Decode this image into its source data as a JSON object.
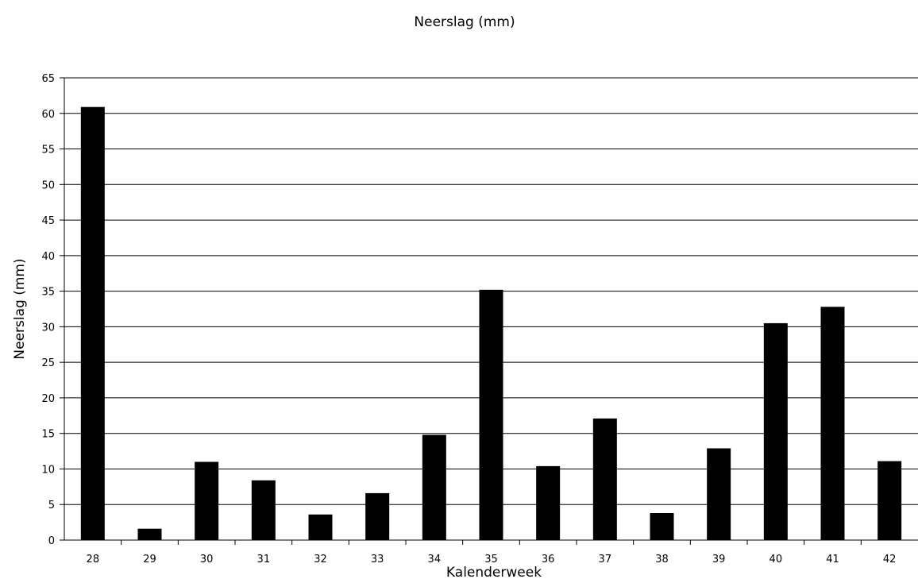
{
  "chart_data": {
    "type": "bar",
    "title": "Neerslag (mm)",
    "xlabel": "Kalenderweek",
    "ylabel": "Neerslag (mm)",
    "categories": [
      "28",
      "29",
      "30",
      "31",
      "32",
      "33",
      "34",
      "35",
      "36",
      "37",
      "38",
      "39",
      "40",
      "41",
      "42"
    ],
    "values": [
      60.9,
      1.6,
      11.0,
      8.4,
      3.6,
      6.6,
      14.8,
      35.2,
      10.4,
      17.1,
      3.8,
      12.9,
      30.5,
      32.8,
      11.1
    ],
    "ylim": [
      0,
      65
    ],
    "yticks": [
      0,
      5,
      10,
      15,
      20,
      25,
      30,
      35,
      40,
      45,
      50,
      55,
      60,
      65
    ],
    "grid": true,
    "legend": "none",
    "bar_color": "#000000"
  }
}
